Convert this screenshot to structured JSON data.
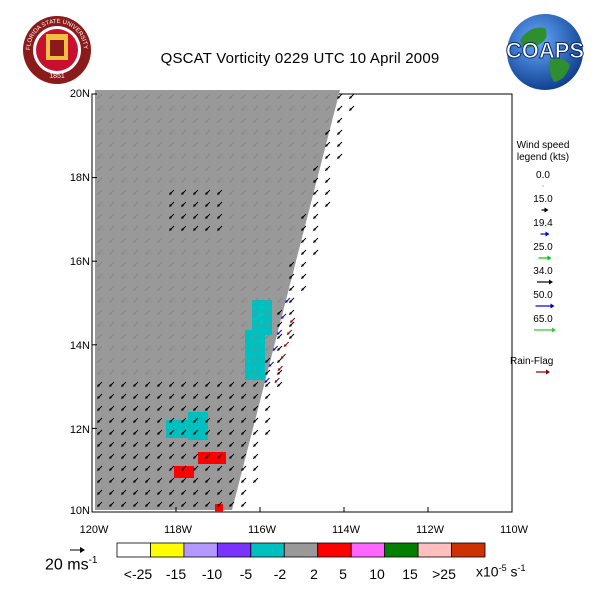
{
  "title": "QSCAT Vorticity 0229 UTC 10 April 2009",
  "map": {
    "lon_range": [
      -120,
      -110
    ],
    "lat_range": [
      10,
      20
    ],
    "lat_labels": [
      "20N",
      "18N",
      "16N",
      "14N",
      "12N",
      "10N"
    ],
    "lon_labels": [
      "120W",
      "118W",
      "116W",
      "114W",
      "112W",
      "110W"
    ]
  },
  "wind_legend": {
    "title_line1": "Wind speed",
    "title_line2": "legend (kts)",
    "values": [
      "0.0",
      "15.0",
      "19.4",
      "25.0",
      "34.0",
      "50.0",
      "65.0"
    ],
    "colors": [
      "#888888",
      "#000000",
      "#0000ff",
      "#00cc00",
      "#000000",
      "#0000cc",
      "#33cc33"
    ],
    "rain_flag_label": "Rain-Flag",
    "rain_flag_color": "#8b0000"
  },
  "scale": {
    "label": "20 ms",
    "exponent": "-1"
  },
  "colorbar": {
    "colors": [
      "#ffffff",
      "#ffff00",
      "#b399ff",
      "#7a33ff",
      "#00bfbf",
      "#999999",
      "#ff0000",
      "#ff66ff",
      "#007f00",
      "#ffbfbf",
      "#cc3300"
    ],
    "labels": [
      "<-25",
      "-15",
      "-10",
      "-5",
      "-2",
      "2",
      "5",
      "10",
      "15",
      ">25"
    ],
    "units": "x10",
    "units_exp": "-5",
    "units_tail": " s",
    "units_tail_exp": "-1"
  },
  "logos": {
    "left": "FLORIDA STATE UNIVERSITY",
    "left_year": "1851",
    "right": "COAPS"
  }
}
